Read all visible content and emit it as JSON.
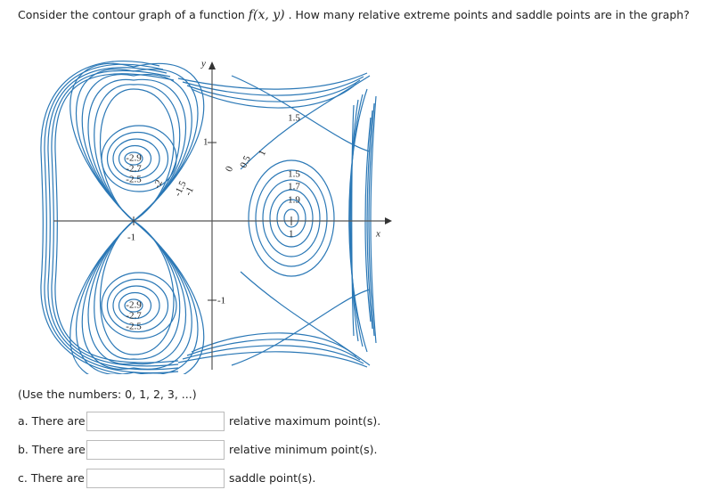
{
  "question": {
    "before": "Consider the contour graph of a function ",
    "function": "f(x, y)",
    "after": " . How many relative extreme points and saddle points are in the graph?"
  },
  "figure": {
    "axis_labels": {
      "x": "x",
      "y": "y"
    },
    "ticks": {
      "y_pos": "1",
      "y_neg": "-1",
      "x_neg": "-1",
      "x_pos": "1"
    },
    "contour_labels": {
      "top_left": [
        "-2.9",
        "-2.7",
        "-2.5"
      ],
      "bottom_left": [
        "-2.9",
        "-2.7",
        "-2.5"
      ],
      "right": [
        "1.5",
        "1.7",
        "1.9"
      ],
      "top_right": "1.5",
      "diagonal": [
        "-2",
        "-1.5",
        "-1",
        "0",
        "0.5",
        "1"
      ]
    }
  },
  "instructions": "(Use the numbers: 0, 1, 2, 3, ...)",
  "rows": [
    {
      "prefix": "a. There are",
      "suffix": "relative maximum point(s)."
    },
    {
      "prefix": "b. There are",
      "suffix": "relative minimum point(s)."
    },
    {
      "prefix": "c. There are",
      "suffix": "saddle point(s)."
    }
  ]
}
